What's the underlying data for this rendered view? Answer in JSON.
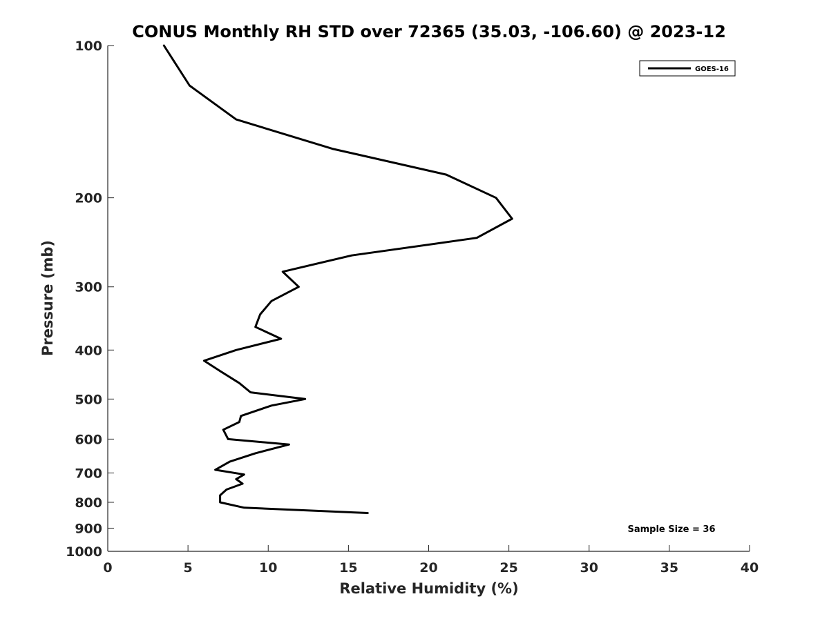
{
  "chart_data": {
    "type": "line",
    "title": "CONUS Monthly RH STD over 72365 (35.03, -106.60) @ 2023-12",
    "xlabel": "Relative Humidity (%)",
    "ylabel": "Pressure (mb)",
    "xlim": [
      0,
      40
    ],
    "ylim": [
      100,
      1000
    ],
    "yscale": "log",
    "y_reversed": true,
    "xticks": [
      0,
      5,
      10,
      15,
      20,
      25,
      30,
      35,
      40
    ],
    "xtick_labels": [
      "0",
      "5",
      "10",
      "15",
      "20",
      "25",
      "30",
      "35",
      "40"
    ],
    "yticks": [
      100,
      200,
      300,
      400,
      500,
      600,
      700,
      800,
      900,
      1000
    ],
    "ytick_labels": [
      "100",
      "200",
      "300",
      "400",
      "500",
      "600",
      "700",
      "800",
      "900",
      "1000"
    ],
    "grid": false,
    "legend_position": "top-right",
    "series": [
      {
        "name": "GOES-16",
        "color": "#000000",
        "points": [
          {
            "x": 3.5,
            "y": 100
          },
          {
            "x": 5.1,
            "y": 120
          },
          {
            "x": 8.0,
            "y": 140
          },
          {
            "x": 14.0,
            "y": 160
          },
          {
            "x": 21.1,
            "y": 180
          },
          {
            "x": 24.2,
            "y": 200
          },
          {
            "x": 25.2,
            "y": 220
          },
          {
            "x": 23.0,
            "y": 240
          },
          {
            "x": 15.2,
            "y": 260
          },
          {
            "x": 10.9,
            "y": 280
          },
          {
            "x": 11.9,
            "y": 300
          },
          {
            "x": 10.2,
            "y": 320
          },
          {
            "x": 9.5,
            "y": 340
          },
          {
            "x": 9.2,
            "y": 360
          },
          {
            "x": 10.8,
            "y": 380
          },
          {
            "x": 8.0,
            "y": 400
          },
          {
            "x": 6.0,
            "y": 420
          },
          {
            "x": 7.0,
            "y": 440
          },
          {
            "x": 8.2,
            "y": 465
          },
          {
            "x": 8.9,
            "y": 485
          },
          {
            "x": 12.3,
            "y": 500
          },
          {
            "x": 10.2,
            "y": 515
          },
          {
            "x": 8.3,
            "y": 540
          },
          {
            "x": 8.2,
            "y": 555
          },
          {
            "x": 7.2,
            "y": 575
          },
          {
            "x": 7.5,
            "y": 600
          },
          {
            "x": 11.3,
            "y": 615
          },
          {
            "x": 9.2,
            "y": 640
          },
          {
            "x": 7.6,
            "y": 665
          },
          {
            "x": 6.7,
            "y": 690
          },
          {
            "x": 8.5,
            "y": 705
          },
          {
            "x": 8.0,
            "y": 720
          },
          {
            "x": 8.4,
            "y": 735
          },
          {
            "x": 7.4,
            "y": 755
          },
          {
            "x": 7.0,
            "y": 775
          },
          {
            "x": 7.0,
            "y": 800
          },
          {
            "x": 8.5,
            "y": 820
          },
          {
            "x": 16.2,
            "y": 840
          }
        ]
      }
    ],
    "annotations": [
      {
        "text": "Sample Size = 36",
        "position": "bottom-right"
      }
    ]
  }
}
